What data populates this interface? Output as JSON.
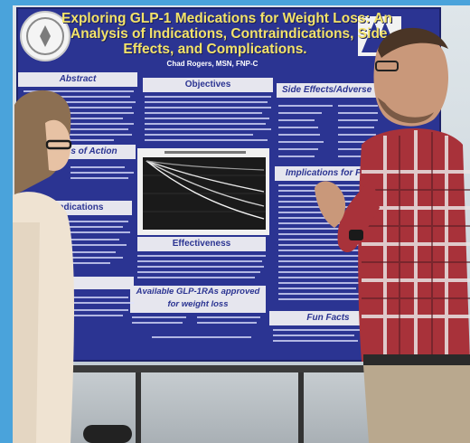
{
  "poster": {
    "title_line1": "Exploring GLP-1 Medications for Weight Loss: An",
    "title_line2": "Analysis of Indications, Contraindications, Side",
    "title_line3": "Effects, and Complications.",
    "author": "Chad Rogers, MSN, FNP-C",
    "sections": {
      "abstract": "Abstract",
      "objectives": "Objectives",
      "side_effects": "Side Effects/Adverse",
      "moa": "...s of Action",
      "indications": "Indications",
      "implications": "Implications for Practice",
      "effectiveness": "Effectiveness",
      "available_line1": "Available GLP-1RAs approved",
      "available_line2": "for weight loss",
      "fun_facts": "Fun Facts"
    }
  },
  "colors": {
    "poster_blue": "#2b3492",
    "header_bar": "#e6e6ee",
    "title_yellow": "#f3e36a",
    "plaid_red": "#a8323a"
  }
}
